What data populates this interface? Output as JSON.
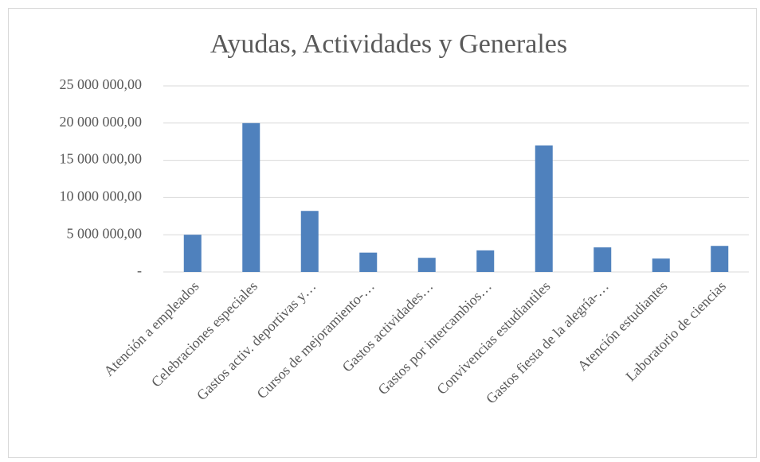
{
  "chart_data": {
    "type": "bar",
    "title": "Ayudas, Actividades y Generales",
    "categories": [
      "Atención a empleados",
      "Celebraciones especiales",
      "Gastos activ. deportivas y…",
      "Cursos de mejoramiento-…",
      "Gastos actividades…",
      "Gastos por intercambios…",
      "Convivencias estudiantiles",
      "Gastos fiesta de la alegría-…",
      "Atención estudiantes",
      "Laboratorio de ciencias"
    ],
    "values": [
      5000000,
      20000000,
      8200000,
      2600000,
      1900000,
      2900000,
      17000000,
      3300000,
      1800000,
      3500000
    ],
    "color": "#4f81bd",
    "ylim": [
      0,
      25000000
    ],
    "yticks": [
      {
        "value": 0,
        "label": "-"
      },
      {
        "value": 5000000,
        "label": "5 000 000,00"
      },
      {
        "value": 10000000,
        "label": "10 000 000,00"
      },
      {
        "value": 15000000,
        "label": "15 000 000,00"
      },
      {
        "value": 20000000,
        "label": "20 000 000,00"
      },
      {
        "value": 25000000,
        "label": "25 000 000,00"
      }
    ],
    "grid": true
  }
}
